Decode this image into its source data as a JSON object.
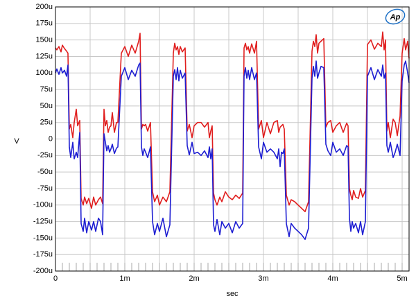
{
  "chart_data": {
    "type": "line",
    "title": "",
    "xlabel": "sec",
    "ylabel": "V",
    "xlim": [
      0,
      5.1
    ],
    "ylim": [
      -200,
      200
    ],
    "x_unit": "ms",
    "y_unit": "µV",
    "grid": true,
    "legend": "none",
    "xticks": [
      0,
      1,
      2,
      3,
      4,
      5
    ],
    "xtick_labels": [
      "0",
      "1m",
      "2m",
      "3m",
      "4m",
      "5m"
    ],
    "yticks": [
      200,
      175,
      150,
      125,
      100,
      75,
      50,
      25,
      0,
      -25,
      -50,
      -75,
      -100,
      -125,
      -150,
      -175,
      -200
    ],
    "ytick_labels": [
      "200u",
      "175u",
      "150u",
      "125u",
      "100u",
      "75u",
      "50u",
      "25u",
      "0",
      "-25u",
      "-50u",
      "-75u",
      "-100u",
      "-125u",
      "-150u",
      "-175u",
      "-200u"
    ],
    "series": [
      {
        "color": "#e01e1e",
        "x": [
          0,
          0.02,
          0.05,
          0.08,
          0.1,
          0.13,
          0.16,
          0.18,
          0.2,
          0.22,
          0.25,
          0.27,
          0.3,
          0.32,
          0.35,
          0.37,
          0.4,
          0.42,
          0.45,
          0.48,
          0.52,
          0.55,
          0.58,
          0.62,
          0.65,
          0.68,
          0.7,
          0.72,
          0.74,
          0.76,
          0.78,
          0.8,
          0.82,
          0.85,
          0.88,
          0.9,
          0.95,
          1.0,
          1.05,
          1.1,
          1.15,
          1.2,
          1.22,
          1.24,
          1.26,
          1.28,
          1.3,
          1.33,
          1.37,
          1.4,
          1.43,
          1.47,
          1.5,
          1.55,
          1.6,
          1.65,
          1.7,
          1.72,
          1.74,
          1.76,
          1.78,
          1.8,
          1.83,
          1.87,
          1.9,
          1.93,
          1.97,
          2.0,
          2.05,
          2.1,
          2.15,
          2.2,
          2.22,
          2.24,
          2.26,
          2.28,
          2.3,
          2.33,
          2.37,
          2.4,
          2.45,
          2.5,
          2.55,
          2.6,
          2.65,
          2.7,
          2.72,
          2.74,
          2.76,
          2.78,
          2.8,
          2.83,
          2.87,
          2.9,
          2.93,
          2.97,
          3.0,
          3.05,
          3.1,
          3.15,
          3.2,
          3.22,
          3.24,
          3.26,
          3.28,
          3.3,
          3.33,
          3.37,
          3.4,
          3.45,
          3.5,
          3.55,
          3.6,
          3.65,
          3.7,
          3.72,
          3.74,
          3.76,
          3.78,
          3.8,
          3.83,
          3.87,
          3.9,
          3.93,
          3.97,
          4.0,
          4.05,
          4.1,
          4.15,
          4.2,
          4.22,
          4.24,
          4.26,
          4.28,
          4.3,
          4.33,
          4.37,
          4.4,
          4.43,
          4.47,
          4.5,
          4.55,
          4.6,
          4.65,
          4.7,
          4.72,
          4.74,
          4.76,
          4.78,
          4.8,
          4.83,
          4.87,
          4.9,
          4.93,
          4.97,
          5.0,
          5.03,
          5.05,
          5.08,
          5.1
        ],
        "y": [
          138,
          135,
          140,
          132,
          142,
          137,
          133,
          130,
          15,
          22,
          2,
          25,
          45,
          20,
          28,
          -90,
          -100,
          -88,
          -98,
          -90,
          -105,
          -88,
          -100,
          -92,
          -88,
          -98,
          45,
          20,
          28,
          10,
          18,
          20,
          40,
          10,
          25,
          25,
          130,
          140,
          125,
          142,
          130,
          148,
          160,
          15,
          22,
          20,
          22,
          12,
          25,
          -80,
          -95,
          -85,
          -100,
          -88,
          -95,
          -80,
          130,
          145,
          135,
          140,
          128,
          140,
          132,
          138,
          12,
          22,
          2,
          20,
          25,
          25,
          18,
          25,
          2,
          12,
          20,
          -82,
          -92,
          -100,
          -88,
          -95,
          -80,
          -88,
          -92,
          -85,
          -90,
          -82,
          138,
          145,
          135,
          140,
          130,
          144,
          130,
          148,
          15,
          28,
          2,
          25,
          8,
          25,
          28,
          10,
          18,
          20,
          22,
          15,
          -85,
          -100,
          -92,
          -95,
          -100,
          -105,
          -110,
          -95,
          133,
          148,
          140,
          158,
          130,
          145,
          148,
          152,
          18,
          25,
          28,
          10,
          20,
          25,
          10,
          24,
          20,
          -75,
          -85,
          -92,
          -78,
          -88,
          -90,
          -75,
          -88,
          -78,
          143,
          150,
          136,
          145,
          140,
          162,
          135,
          150,
          12,
          25,
          2,
          30,
          25,
          5,
          35,
          130,
          152,
          135,
          148,
          122
        ]
      },
      {
        "color": "#1e1ed2",
        "x": [
          0,
          0.02,
          0.05,
          0.08,
          0.1,
          0.13,
          0.16,
          0.18,
          0.2,
          0.22,
          0.25,
          0.27,
          0.3,
          0.32,
          0.35,
          0.37,
          0.4,
          0.42,
          0.45,
          0.48,
          0.52,
          0.55,
          0.58,
          0.62,
          0.65,
          0.68,
          0.7,
          0.72,
          0.74,
          0.76,
          0.78,
          0.8,
          0.82,
          0.85,
          0.88,
          0.9,
          0.95,
          1.0,
          1.05,
          1.1,
          1.15,
          1.2,
          1.22,
          1.24,
          1.26,
          1.28,
          1.3,
          1.33,
          1.37,
          1.4,
          1.43,
          1.47,
          1.5,
          1.55,
          1.6,
          1.65,
          1.7,
          1.72,
          1.74,
          1.76,
          1.78,
          1.8,
          1.83,
          1.87,
          1.9,
          1.93,
          1.97,
          2.0,
          2.05,
          2.1,
          2.15,
          2.2,
          2.22,
          2.24,
          2.26,
          2.28,
          2.3,
          2.33,
          2.37,
          2.4,
          2.45,
          2.5,
          2.55,
          2.6,
          2.65,
          2.7,
          2.72,
          2.74,
          2.76,
          2.78,
          2.8,
          2.83,
          2.87,
          2.9,
          2.93,
          2.97,
          3.0,
          3.05,
          3.1,
          3.15,
          3.2,
          3.22,
          3.24,
          3.26,
          3.28,
          3.3,
          3.33,
          3.37,
          3.4,
          3.45,
          3.5,
          3.55,
          3.6,
          3.65,
          3.7,
          3.72,
          3.74,
          3.76,
          3.78,
          3.8,
          3.83,
          3.87,
          3.9,
          3.93,
          3.97,
          4.0,
          4.05,
          4.1,
          4.15,
          4.2,
          4.22,
          4.24,
          4.26,
          4.28,
          4.3,
          4.33,
          4.37,
          4.4,
          4.43,
          4.47,
          4.5,
          4.55,
          4.6,
          4.65,
          4.7,
          4.72,
          4.74,
          4.76,
          4.78,
          4.8,
          4.83,
          4.87,
          4.9,
          4.93,
          4.97,
          5.0,
          5.03,
          5.05,
          5.08,
          5.1
        ],
        "y": [
          100,
          106,
          98,
          108,
          100,
          104,
          95,
          112,
          -12,
          -28,
          -5,
          -30,
          -20,
          -28,
          10,
          -128,
          -140,
          -120,
          -142,
          -125,
          -138,
          -125,
          -140,
          -120,
          -125,
          -145,
          8,
          -5,
          -18,
          -10,
          -20,
          -15,
          -8,
          -22,
          -14,
          -12,
          95,
          108,
          90,
          104,
          95,
          112,
          115,
          -12,
          -25,
          -15,
          -20,
          -28,
          -12,
          -125,
          -145,
          -128,
          -140,
          -120,
          -148,
          -130,
          95,
          105,
          90,
          108,
          88,
          104,
          92,
          100,
          -10,
          -24,
          -5,
          -22,
          -20,
          -25,
          -18,
          -28,
          -12,
          -30,
          -15,
          -130,
          -140,
          -122,
          -145,
          -125,
          -135,
          -128,
          -142,
          -125,
          -135,
          -128,
          95,
          108,
          92,
          104,
          90,
          108,
          90,
          100,
          -12,
          -30,
          -5,
          -20,
          -15,
          -20,
          -30,
          -15,
          -42,
          -20,
          -22,
          -15,
          -128,
          -148,
          -128,
          -135,
          -140,
          -145,
          -152,
          -135,
          92,
          110,
          95,
          118,
          92,
          100,
          110,
          108,
          -8,
          -18,
          -25,
          -5,
          -20,
          -15,
          -25,
          -10,
          -12,
          -120,
          -140,
          -125,
          -135,
          -128,
          -142,
          -125,
          -145,
          -125,
          95,
          108,
          90,
          105,
          95,
          112,
          92,
          100,
          -10,
          -20,
          -5,
          -28,
          -20,
          -8,
          -25,
          88,
          112,
          118,
          100,
          85
        ]
      }
    ]
  },
  "logo": {
    "text": "Ap",
    "color": "#1b6fc6"
  }
}
